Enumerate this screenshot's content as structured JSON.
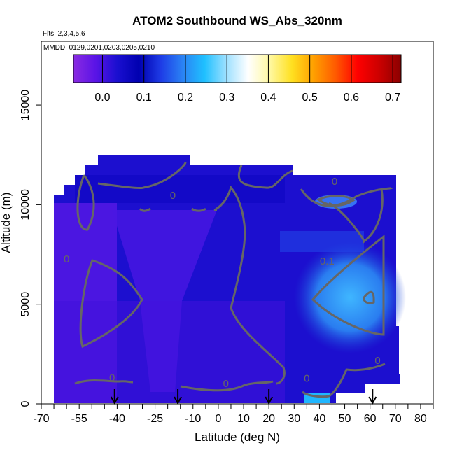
{
  "chart_data": {
    "type": "heatmap",
    "title": "ATOM2 Southbound WS_Abs_320nm",
    "annotations": {
      "flights": "Flts: 2,3,4,5,6",
      "mmdd": "MMDD: 0129,0201,0203,0205,0210"
    },
    "xlabel": "Latitude (deg N)",
    "ylabel": "Altitude (m)",
    "xlim": [
      -70,
      85
    ],
    "ylim": [
      0,
      18200
    ],
    "x_ticks": [
      -70,
      -55,
      -40,
      -25,
      -10,
      0,
      10,
      20,
      30,
      40,
      50,
      60,
      70,
      80
    ],
    "x_minor_ticks": [
      -65,
      -60,
      -50,
      -45,
      -35,
      -30,
      -20,
      -15,
      -5,
      5,
      15,
      25,
      35,
      45,
      55,
      65,
      75,
      85
    ],
    "y_ticks": [
      0,
      5000,
      10000,
      15000
    ],
    "colorbar": {
      "ticks": [
        0.0,
        0.1,
        0.2,
        0.3,
        0.4,
        0.5,
        0.6,
        0.7
      ],
      "tick_labels": [
        "0.0",
        "0.1",
        "0.2",
        "0.3",
        "0.4",
        "0.5",
        "0.6",
        "0.7"
      ],
      "range": [
        -0.07,
        0.72
      ],
      "colors": [
        "#8a2be2",
        "#5a14e6",
        "#1a0fd0",
        "#0000b0",
        "#1e3ce6",
        "#2a82f4",
        "#1fc0ff",
        "#9ee0ff",
        "#ffffff",
        "#fff8a0",
        "#ffe020",
        "#ffa000",
        "#ff5a00",
        "#ff0000",
        "#cc0000",
        "#8b0000"
      ]
    },
    "contour_labels": [
      {
        "text": "0",
        "lat": -18,
        "alt": 10300
      },
      {
        "text": "0",
        "lat": 46,
        "alt": 11000
      },
      {
        "text": "0",
        "lat": -60,
        "alt": 7100
      },
      {
        "text": "0.1",
        "lat": 43,
        "alt": 7000
      },
      {
        "text": "0",
        "lat": 63,
        "alt": 2000
      },
      {
        "text": "0",
        "lat": 35,
        "alt": 1100
      },
      {
        "text": "0",
        "lat": -42,
        "alt": 1150
      },
      {
        "text": "0",
        "lat": 3,
        "alt": 850
      }
    ],
    "flight_arrows_lat": [
      -41,
      -16,
      20,
      61
    ],
    "data_summary": {
      "value_min": -0.05,
      "value_max": 0.25,
      "notes": "Mostly near-zero absorption; low values (purple) over southern mid-latitudes; elevated values (light blue, ~0.1-0.2) around 45-70N at 3000-8000 m"
    }
  }
}
